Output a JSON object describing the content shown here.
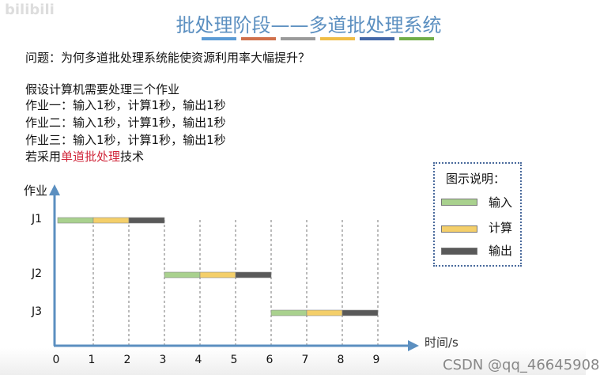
{
  "watermark_logo": "bilibili",
  "title": "批处理阶段——多道批处理系统",
  "stripe_colors": [
    "#5b9bd5",
    "#d0704a",
    "#9a9a9a",
    "#f0bd45",
    "#4468a8",
    "#70ad47"
  ],
  "question": "问题：为何多道批处理系统能使资源利用率大幅提升？",
  "lines": [
    "假设计算机需要处理三个作业",
    "作业一：输入1秒，计算1秒，输出1秒",
    "作业二：输入1秒，计算1秒，输出1秒",
    "作业三：输入1秒，计算1秒，输出1秒"
  ],
  "last_line": {
    "prefix": "若采用",
    "highlight": "单道批处理",
    "suffix": "技术"
  },
  "legend": {
    "title": "图示说明：",
    "items": [
      {
        "label": "输入",
        "color": "#a9d18e"
      },
      {
        "label": "计算",
        "color": "#f4cf6a"
      },
      {
        "label": "输出",
        "color": "#595959"
      }
    ]
  },
  "watermark": "CSDN @qq_46645908",
  "chart_data": {
    "type": "gantt",
    "ylabel": "作业",
    "xlabel": "时间/s",
    "x_ticks": [
      0,
      1,
      2,
      3,
      4,
      5,
      6,
      7,
      8,
      9
    ],
    "jobs": [
      {
        "name": "J1",
        "segments": [
          {
            "phase": "输入",
            "start": 0,
            "end": 1
          },
          {
            "phase": "计算",
            "start": 1,
            "end": 2
          },
          {
            "phase": "输出",
            "start": 2,
            "end": 3
          }
        ]
      },
      {
        "name": "J2",
        "segments": [
          {
            "phase": "输入",
            "start": 3,
            "end": 4
          },
          {
            "phase": "计算",
            "start": 4,
            "end": 5
          },
          {
            "phase": "输出",
            "start": 5,
            "end": 6
          }
        ]
      },
      {
        "name": "J3",
        "segments": [
          {
            "phase": "输入",
            "start": 6,
            "end": 7
          },
          {
            "phase": "计算",
            "start": 7,
            "end": 8
          },
          {
            "phase": "输出",
            "start": 8,
            "end": 9
          }
        ]
      }
    ]
  }
}
